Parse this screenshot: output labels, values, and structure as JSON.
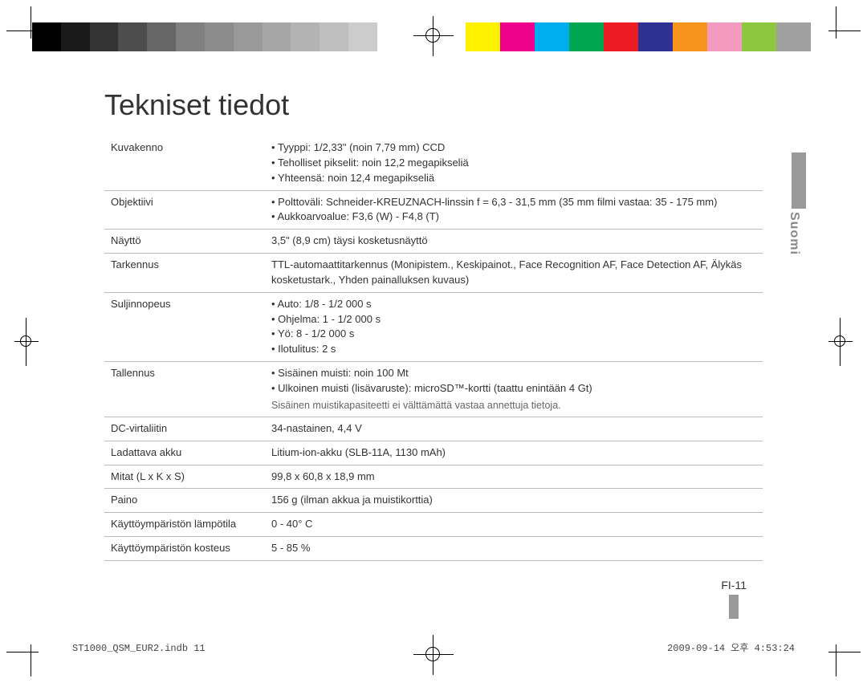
{
  "title": "Tekniset tiedot",
  "language_tab": "Suomi",
  "page_number": "FI-11",
  "footer_left": "ST1000_QSM_EUR2.indb   11",
  "footer_right": "2009-09-14   오후 4:53:24",
  "colorbar_grayscale": [
    "#000000",
    "#1a1a1a",
    "#333333",
    "#4d4d4d",
    "#666666",
    "#808080",
    "#8c8c8c",
    "#999999",
    "#a6a6a6",
    "#b3b3b3",
    "#bfbfbf",
    "#cccccc"
  ],
  "colorbar_bright": [
    "#fff200",
    "#ec008c",
    "#00aeef",
    "#00a651",
    "#ed1c24",
    "#2e3192",
    "#f7941d",
    "#f49ac1",
    "#8dc63f",
    "#a0a0a0"
  ],
  "specs": {
    "kuvakenno": {
      "label": "Kuvakenno",
      "items": [
        "Tyyppi: 1/2,33\" (noin 7,79 mm) CCD",
        "Teholliset pikselit: noin 12,2 megapikseliä",
        "Yhteensä: noin 12,4 megapikseliä"
      ]
    },
    "objektiivi": {
      "label": "Objektiivi",
      "items": [
        "Polttoväli: Schneider-KREUZNACH-linssin f = 6,3 - 31,5 mm (35 mm filmi vastaa: 35 - 175 mm)",
        "Aukkoarvoalue: F3,6 (W) - F4,8 (T)"
      ]
    },
    "naytto": {
      "label": "Näyttö",
      "text": "3,5\" (8,9 cm) täysi kosketusnäyttö"
    },
    "tarkennus": {
      "label": "Tarkennus",
      "text": "TTL-automaattitarkennus (Monipistem., Keskipainot., Face Recognition AF, Face Detection AF, Älykäs kosketustark., Yhden painalluksen kuvaus)"
    },
    "suljin": {
      "label": "Suljinnopeus",
      "items": [
        "Auto: 1/8 - 1/2 000 s",
        "Ohjelma: 1 - 1/2 000 s",
        "Yö: 8 - 1/2 000 s",
        "Ilotulitus: 2 s"
      ]
    },
    "tallennus": {
      "label": "Tallennus",
      "items": [
        "Sisäinen muisti: noin 100 Mt",
        "Ulkoinen muisti (lisävaruste): microSD™-kortti (taattu enintään 4 Gt)"
      ],
      "note": "Sisäinen muistikapasiteetti ei välttämättä vastaa annettuja tietoja."
    },
    "dc": {
      "label": "DC-virtaliitin",
      "text": "34-nastainen, 4,4 V"
    },
    "akku": {
      "label": "Ladattava akku",
      "text": "Litium-ion-akku (SLB-11A, 1130 mAh)"
    },
    "mitat": {
      "label": "Mitat (L x K x S)",
      "text": "99,8 x 60,8 x 18,9 mm"
    },
    "paino": {
      "label": "Paino",
      "text": "156 g (ilman akkua ja muistikorttia)"
    },
    "temp": {
      "label": "Käyttöympäristön lämpötila",
      "text": "0 - 40° C"
    },
    "humid": {
      "label": "Käyttöympäristön kosteus",
      "text": "5 - 85 %"
    }
  }
}
